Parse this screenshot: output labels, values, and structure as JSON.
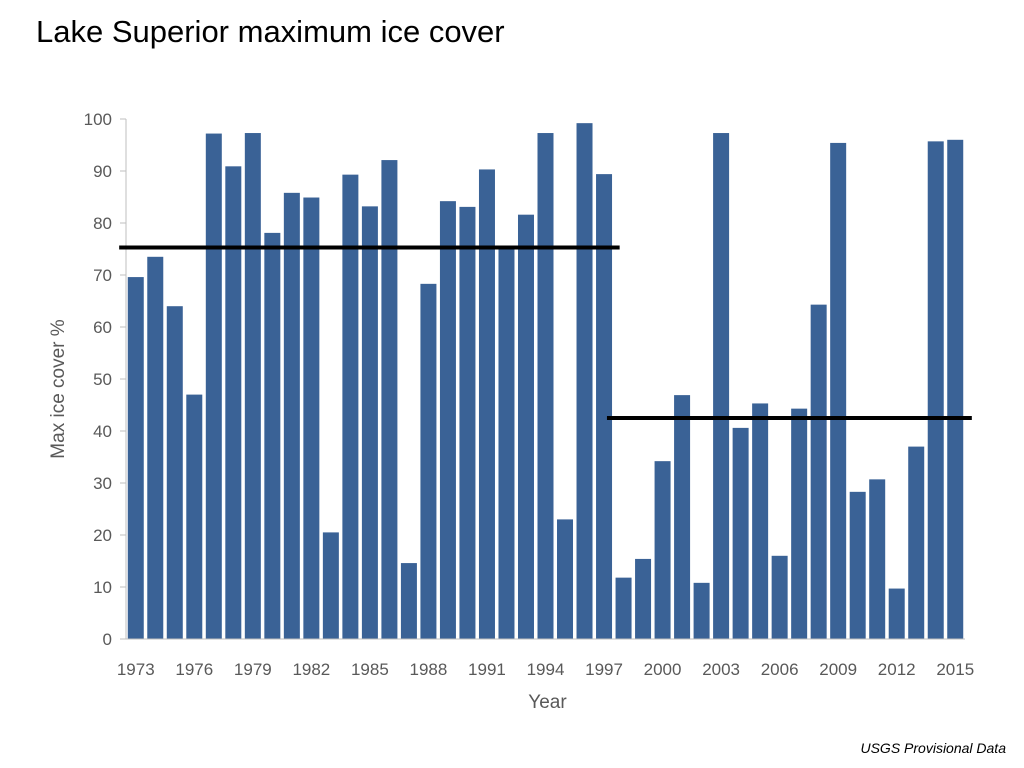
{
  "title": "Lake Superior maximum ice cover",
  "source_note": "USGS Provisional Data",
  "chart_data": {
    "type": "bar",
    "ylabel": "Max ice cover %",
    "xlabel": "Year",
    "ylim": [
      0,
      100
    ],
    "yticks": [
      0,
      10,
      20,
      30,
      40,
      50,
      60,
      70,
      80,
      90,
      100
    ],
    "x_tick_labels": [
      "1973",
      "1976",
      "1979",
      "1982",
      "1985",
      "1988",
      "1991",
      "1994",
      "1997",
      "2000",
      "2003",
      "2006",
      "2009",
      "2012",
      "2015"
    ],
    "bar_color": "#3a6296",
    "categories": [
      1973,
      1974,
      1975,
      1976,
      1977,
      1978,
      1979,
      1980,
      1981,
      1982,
      1983,
      1984,
      1985,
      1986,
      1987,
      1988,
      1989,
      1990,
      1991,
      1992,
      1993,
      1994,
      1995,
      1996,
      1997,
      1998,
      1999,
      2000,
      2001,
      2002,
      2003,
      2004,
      2005,
      2006,
      2007,
      2008,
      2009,
      2010,
      2011,
      2012,
      2013,
      2014,
      2015
    ],
    "values": [
      69.6,
      73.5,
      64.0,
      47.0,
      97.2,
      90.9,
      97.3,
      78.1,
      85.8,
      84.9,
      20.5,
      89.3,
      83.2,
      92.1,
      14.6,
      68.3,
      84.2,
      83.1,
      90.3,
      75.3,
      81.6,
      97.3,
      23.0,
      99.2,
      89.4,
      11.8,
      15.4,
      34.2,
      46.9,
      10.8,
      97.3,
      40.6,
      45.3,
      16.0,
      44.3,
      64.3,
      95.4,
      28.3,
      30.7,
      9.7,
      37.0,
      95.7,
      96.0
    ],
    "reference_lines": [
      {
        "from": 1973,
        "to": 1997,
        "value": 75.3
      },
      {
        "from": 1998,
        "to": 2015,
        "value": 42.5
      }
    ]
  }
}
